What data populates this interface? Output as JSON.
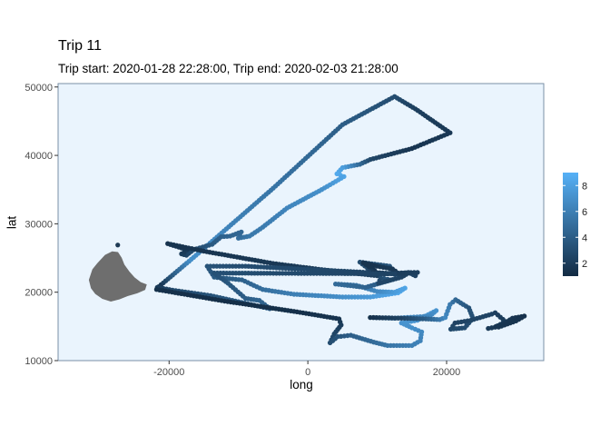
{
  "chart_data": {
    "type": "scatter",
    "title": "Trip 11",
    "subtitle": "Trip start: 2020-01-28 22:28:00, Trip end: 2020-02-03 21:28:00",
    "xlabel": "long",
    "ylabel": "lat",
    "xlim": [
      -36000,
      34000
    ],
    "ylim": [
      10000,
      50500
    ],
    "x_ticks": [
      -20000,
      0,
      20000
    ],
    "x_tick_labels": [
      "-20000",
      "0",
      "20000"
    ],
    "y_ticks": [
      10000,
      20000,
      30000,
      40000,
      50000
    ],
    "y_tick_labels": [
      "10000",
      "20000",
      "30000",
      "40000",
      "50000"
    ],
    "legend": {
      "position": "right",
      "range": [
        1,
        9
      ],
      "ticks": [
        2,
        4,
        6,
        8
      ],
      "tick_labels": [
        "2",
        "4",
        "6",
        "8"
      ],
      "low_color": "#132b43",
      "high_color": "#56b1f7"
    },
    "panel_background": "#eaf4fd",
    "panel_border": "#7a8fa6",
    "grid": false,
    "land_color": "#6e6e6e",
    "island": {
      "outline": [
        [
          -31200,
          20600
        ],
        [
          -31500,
          21800
        ],
        [
          -31000,
          23300
        ],
        [
          -30300,
          24200
        ],
        [
          -29200,
          25400
        ],
        [
          -28200,
          25900
        ],
        [
          -27400,
          25800
        ],
        [
          -26900,
          25000
        ],
        [
          -26500,
          24000
        ],
        [
          -25800,
          23000
        ],
        [
          -25000,
          22100
        ],
        [
          -24100,
          21400
        ],
        [
          -23300,
          21100
        ],
        [
          -23500,
          20400
        ],
        [
          -24600,
          19900
        ],
        [
          -26000,
          19500
        ],
        [
          -27200,
          19000
        ],
        [
          -28400,
          18700
        ],
        [
          -29600,
          19100
        ],
        [
          -30600,
          19800
        ]
      ],
      "islet": [
        -27400,
        26900
      ]
    },
    "track": {
      "waypoints": [
        [
          -21500,
          20800,
          1.4
        ],
        [
          -16800,
          24800,
          7.0
        ],
        [
          -5000,
          35200,
          5.4
        ],
        [
          5000,
          44500,
          4.0
        ],
        [
          12500,
          48600,
          3.0
        ],
        [
          15500,
          46800,
          2.2
        ],
        [
          20500,
          43300,
          1.8
        ],
        [
          15000,
          41000,
          1.6
        ],
        [
          9000,
          39400,
          2.6
        ],
        [
          7500,
          38700,
          4.5
        ],
        [
          5000,
          38200,
          7.8
        ],
        [
          4200,
          37300,
          8.5
        ],
        [
          5200,
          36900,
          8.2
        ],
        [
          2000,
          35000,
          7.0
        ],
        [
          -3000,
          32300,
          6.4
        ],
        [
          -6500,
          29500,
          5.8
        ],
        [
          -8400,
          28200,
          5.6
        ],
        [
          -10000,
          27900,
          5.0
        ],
        [
          -9600,
          28800,
          4.6
        ],
        [
          -11200,
          28200,
          4.4
        ],
        [
          -12500,
          28100,
          4.2
        ],
        [
          -13800,
          27000,
          3.8
        ],
        [
          -16500,
          26200,
          3.0
        ],
        [
          -17500,
          25400,
          2.5
        ],
        [
          -18200,
          25600,
          2.0
        ],
        [
          -17400,
          26200,
          1.8
        ],
        [
          -20200,
          27100,
          1.5
        ],
        [
          -15000,
          26000,
          1.6
        ],
        [
          -5000,
          24200,
          1.8
        ],
        [
          2000,
          23300,
          2.0
        ],
        [
          10000,
          22400,
          2.2
        ],
        [
          7500,
          24400,
          3.0
        ],
        [
          11800,
          23800,
          3.4
        ],
        [
          12500,
          22600,
          3.2
        ],
        [
          14500,
          22900,
          2.6
        ],
        [
          15500,
          22400,
          2.4
        ],
        [
          15800,
          22900,
          2.2
        ],
        [
          13000,
          22800,
          2.0
        ],
        [
          12200,
          23400,
          1.8
        ],
        [
          10000,
          23800,
          1.6
        ],
        [
          8000,
          24300,
          1.5
        ],
        [
          9600,
          23200,
          1.6
        ],
        [
          8400,
          22900,
          2.6
        ],
        [
          -9000,
          23800,
          3.0
        ],
        [
          -14500,
          23800,
          3.4
        ],
        [
          -13500,
          22200,
          3.8
        ],
        [
          -9500,
          21800,
          4.2
        ],
        [
          -6500,
          20400,
          5.0
        ],
        [
          -2000,
          19700,
          6.0
        ],
        [
          5000,
          19300,
          7.0
        ],
        [
          9000,
          19300,
          7.6
        ],
        [
          13000,
          19900,
          8.4
        ],
        [
          14000,
          20600,
          8.2
        ],
        [
          12500,
          20000,
          7.8
        ],
        [
          10000,
          20100,
          6.6
        ],
        [
          7000,
          21000,
          5.4
        ],
        [
          4000,
          21200,
          4.8
        ],
        [
          8300,
          20700,
          4.4
        ],
        [
          12000,
          21800,
          3.6
        ],
        [
          10500,
          22100,
          3.0
        ],
        [
          10200,
          21300,
          2.6
        ],
        [
          13500,
          22200,
          2.4
        ],
        [
          14500,
          22800,
          2.2
        ],
        [
          11000,
          22700,
          2.0
        ],
        [
          9500,
          22900,
          1.8
        ],
        [
          12500,
          22700,
          2.4
        ],
        [
          -13500,
          22800,
          3.2
        ],
        [
          -11500,
          21300,
          3.6
        ],
        [
          -9000,
          19100,
          4.0
        ],
        [
          -7000,
          18800,
          4.4
        ],
        [
          -5500,
          17600,
          4.0
        ],
        [
          -10000,
          18600,
          3.6
        ],
        [
          -14000,
          19500,
          3.4
        ],
        [
          -19500,
          20300,
          2.8
        ],
        [
          -21700,
          20700,
          2.0
        ],
        [
          -21800,
          20400,
          1.4
        ],
        [
          -12000,
          18700,
          1.2
        ],
        [
          -2000,
          17200,
          1.3
        ],
        [
          4500,
          16100,
          1.5
        ],
        [
          4800,
          15200,
          2.0
        ],
        [
          3800,
          13900,
          2.6
        ],
        [
          3200,
          12600,
          3.0
        ],
        [
          4300,
          13500,
          3.4
        ],
        [
          6200,
          13700,
          4.0
        ],
        [
          9500,
          12700,
          4.8
        ],
        [
          11500,
          12200,
          5.4
        ],
        [
          15000,
          12200,
          6.0
        ],
        [
          16200,
          12900,
          6.2
        ],
        [
          16400,
          14200,
          6.6
        ],
        [
          15000,
          14800,
          7.0
        ],
        [
          13500,
          15500,
          7.2
        ],
        [
          15800,
          15900,
          7.4
        ],
        [
          18500,
          17300,
          7.2
        ],
        [
          17600,
          16500,
          6.6
        ],
        [
          12500,
          16200,
          5.8
        ],
        [
          9000,
          16300,
          1.4
        ],
        [
          13500,
          16200,
          2.4
        ],
        [
          17000,
          16100,
          4.0
        ],
        [
          19000,
          16000,
          5.6
        ],
        [
          19800,
          16300,
          6.6
        ],
        [
          20500,
          18200,
          5.8
        ],
        [
          21300,
          18900,
          4.6
        ],
        [
          22400,
          18200,
          4.0
        ],
        [
          23200,
          17700,
          3.4
        ],
        [
          23800,
          16200,
          3.2
        ],
        [
          22600,
          14800,
          3.0
        ],
        [
          20600,
          14600,
          2.8
        ],
        [
          21200,
          15500,
          2.4
        ],
        [
          23500,
          15900,
          2.6
        ],
        [
          26500,
          16800,
          2.4
        ],
        [
          27000,
          17000,
          2.2
        ],
        [
          28500,
          15700,
          2.0
        ],
        [
          27000,
          14900,
          2.0
        ],
        [
          26000,
          14700,
          1.9
        ],
        [
          27500,
          15000,
          1.8
        ],
        [
          29500,
          16200,
          1.6
        ],
        [
          31200,
          16500,
          1.4
        ],
        [
          30000,
          15800,
          1.5
        ],
        [
          27500,
          14900,
          1.6
        ],
        [
          26800,
          15100,
          1.7
        ]
      ]
    }
  }
}
